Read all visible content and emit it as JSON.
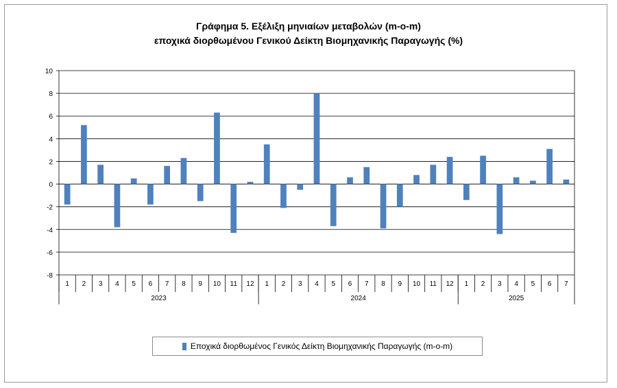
{
  "chart_data": {
    "type": "bar",
    "title_line1": "Γράφημα 5. Εξέλιξη μηνιαίων μεταβολών (m-o-m)",
    "title_line2": "εποχικά διορθωμένου Γενικού Δείκτη Βιομηχανικής Παραγωγής (%)",
    "ylim": [
      -8,
      10
    ],
    "yticks": [
      10,
      8,
      6,
      4,
      2,
      0,
      -2,
      -4,
      -6,
      -8
    ],
    "grid": true,
    "legend_placement": "bottom",
    "bar_color": "#4f81bd",
    "year_groups": [
      {
        "year": "2023",
        "months": [
          "1",
          "2",
          "3",
          "4",
          "5",
          "6",
          "7",
          "8",
          "9",
          "10",
          "11",
          "12"
        ]
      },
      {
        "year": "2024",
        "months": [
          "1",
          "2",
          "3",
          "4",
          "5",
          "6",
          "7",
          "8",
          "9",
          "10",
          "11",
          "12"
        ]
      },
      {
        "year": "2025",
        "months": [
          "1",
          "2",
          "3",
          "4",
          "5",
          "6",
          "7"
        ]
      }
    ],
    "series": [
      {
        "name": "Εποχικά διορθωμένος Γενικός Δείκτη Βιομηχανικής Παραγωγής (m-o-m)",
        "values": [
          -1.8,
          5.2,
          1.7,
          -3.8,
          0.5,
          -1.8,
          1.6,
          2.3,
          -1.5,
          6.3,
          -4.3,
          0.2,
          3.5,
          -2.1,
          -0.5,
          8.0,
          -3.7,
          0.6,
          1.5,
          -3.9,
          -2.0,
          0.8,
          1.7,
          2.4,
          -1.4,
          2.5,
          -4.4,
          0.6,
          0.3,
          3.1,
          0.4
        ]
      }
    ]
  }
}
